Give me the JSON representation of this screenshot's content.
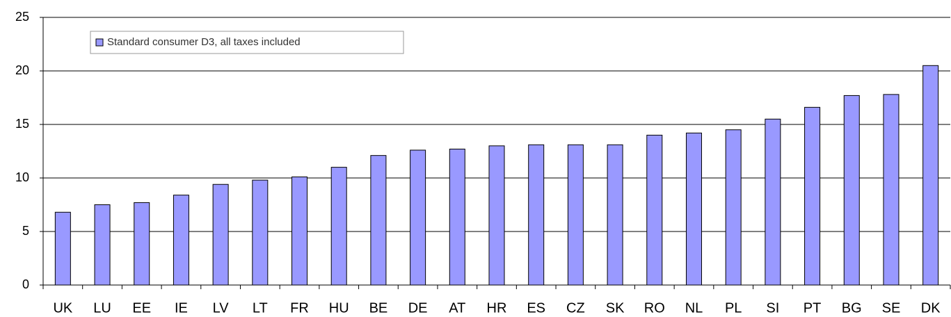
{
  "chart_data": {
    "type": "bar",
    "categories": [
      "UK",
      "LU",
      "EE",
      "IE",
      "LV",
      "LT",
      "FR",
      "HU",
      "BE",
      "DE",
      "AT",
      "HR",
      "ES",
      "CZ",
      "SK",
      "RO",
      "NL",
      "PL",
      "SI",
      "PT",
      "BG",
      "SE",
      "DK"
    ],
    "series": [
      {
        "name": "Standard consumer D3, all taxes included",
        "color": "#9999ff",
        "values": [
          6.8,
          7.5,
          7.7,
          8.4,
          9.4,
          9.8,
          10.1,
          11.0,
          12.1,
          12.6,
          12.7,
          13.0,
          13.1,
          13.1,
          13.1,
          14.0,
          14.2,
          14.5,
          15.5,
          16.6,
          17.7,
          17.8,
          20.5
        ]
      }
    ],
    "ylim": [
      0,
      25
    ],
    "yticks": [
      0,
      5,
      10,
      15,
      20,
      25
    ],
    "grid": true,
    "legend": "upper left"
  }
}
